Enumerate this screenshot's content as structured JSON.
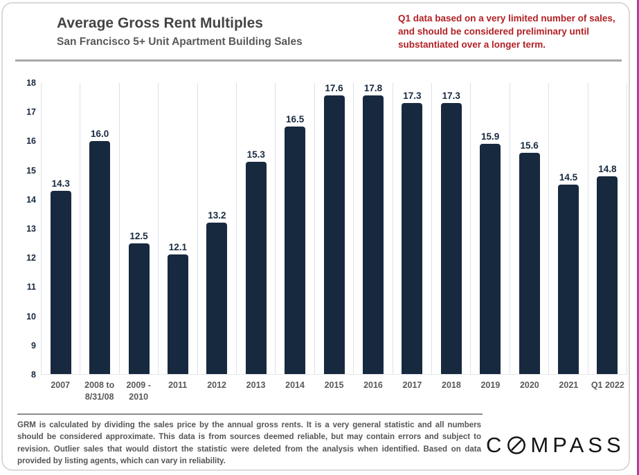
{
  "page": {
    "title": "Average Gross Rent Multiples",
    "subtitle": "San Francisco 5+ Unit Apartment Building Sales",
    "note": "Q1 data based on a very limited number of sales, and should be considered preliminary until substantiated over a longer term.",
    "footnote": "GRM is calculated by dividing the sales price by the annual gross rents. It is a very general statistic and all numbers should be considered approximate. This data is from sources deemed reliable, but may contain errors and subject to revision. Outlier sales that would distort the statistic were deleted from the analysis when identified. Based on data provided by listing agents, which can vary in reliability.",
    "logo": {
      "pre": "C",
      "post": "MPASS"
    }
  },
  "colors": {
    "bar": "#17293f",
    "axis_label": "#17293f",
    "category_label": "#595959",
    "note_red": "#b12025",
    "gridline": "#dce1e7"
  },
  "chart_data": {
    "type": "bar",
    "title": "Average Gross Rent Multiples",
    "subtitle": "San Francisco 5+ Unit Apartment Building Sales",
    "categories": [
      "2007",
      "2008 to 8/31/08",
      "2009 - 2010",
      "2011",
      "2012",
      "2013",
      "2014",
      "2015",
      "2016",
      "2017",
      "2018",
      "2019",
      "2020",
      "2021",
      "Q1 2022"
    ],
    "values": [
      14.3,
      16.0,
      12.5,
      12.1,
      13.2,
      15.3,
      16.5,
      17.6,
      17.8,
      17.3,
      17.3,
      15.9,
      15.6,
      14.5,
      14.8
    ],
    "data_labels": [
      "14.3",
      "16.0",
      "12.5",
      "12.1",
      "13.2",
      "15.3",
      "16.5",
      "17.6",
      "17.8",
      "17.3",
      "17.3",
      "15.9",
      "15.6",
      "14.5",
      "14.8"
    ],
    "xlabel": "",
    "ylabel": "",
    "ylim": [
      8,
      18
    ],
    "yticks": [
      8,
      9,
      10,
      11,
      12,
      13,
      14,
      15,
      16,
      17,
      18
    ],
    "grid": "vertical-only",
    "legend": "none",
    "bar_color": "#17293f"
  }
}
